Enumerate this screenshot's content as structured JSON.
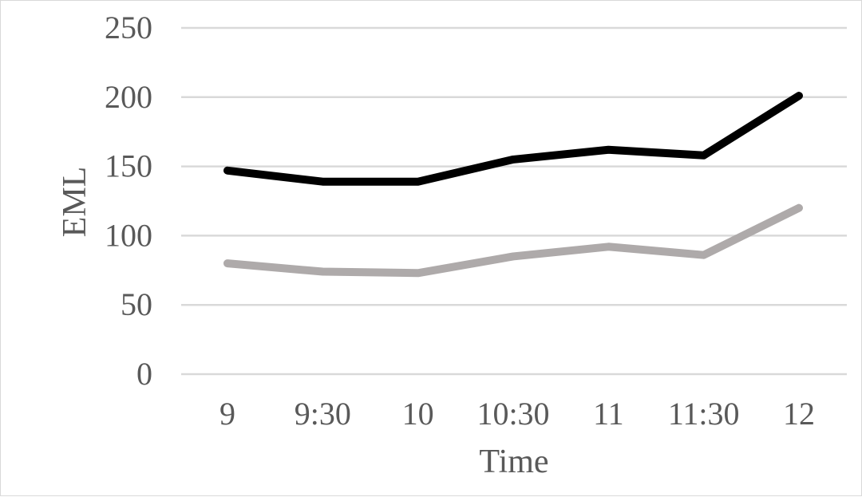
{
  "chart_data": {
    "type": "line",
    "title": "",
    "xlabel": "Time",
    "ylabel": "EML",
    "categories": [
      "9",
      "9:30",
      "10",
      "10:30",
      "11",
      "11:30",
      "12"
    ],
    "ylim": [
      0,
      250
    ],
    "yticks": [
      "0",
      "50",
      "100",
      "150",
      "200",
      "250"
    ],
    "grid": true,
    "legend": "none",
    "series": [
      {
        "color": "#000000",
        "values": [
          147,
          139,
          139,
          155,
          162,
          158,
          201
        ]
      },
      {
        "color": "#aeaaaa",
        "values": [
          80,
          74,
          73,
          85,
          92,
          86,
          120
        ]
      }
    ]
  }
}
